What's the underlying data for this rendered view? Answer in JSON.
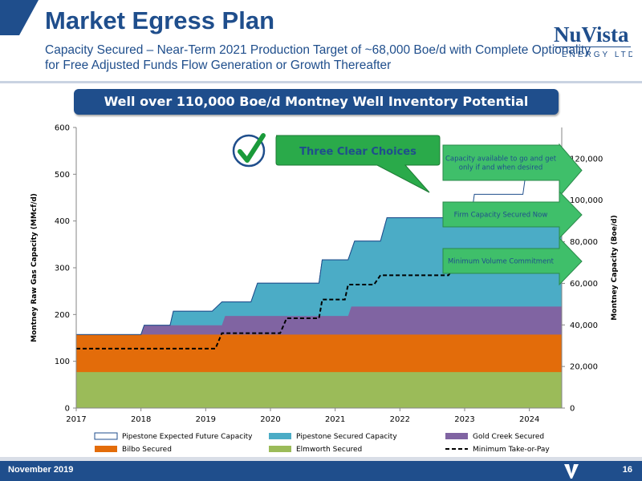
{
  "header": {
    "title": "Market Egress Plan",
    "subtitle": "Capacity Secured – Near-Term 2021 Production Target of ~68,000 Boe/d with Complete Optionality for Free Adjusted Funds Flow Generation or Growth Thereafter"
  },
  "logo": {
    "text": "NuVista",
    "tagline": "ENERGY LTD"
  },
  "banner": {
    "text": "Well over 110,000 Boe/d Montney Well Inventory Potential"
  },
  "footer": {
    "date": "November 2019",
    "page": "16"
  },
  "colors": {
    "brand": "#1f4e8c",
    "elmworth": "#9bbb59",
    "bilbo": "#e36c0a",
    "gold_creek": "#8064a2",
    "pipestone_secured": "#4bacc6",
    "pipestone_future": "#ffffff",
    "callout": "#2aaa4a",
    "arrow": "#3fbf6a"
  },
  "chart_data": {
    "type": "area",
    "title": "",
    "ylabel": "Montney Raw Gas Capacity (MMcf/d)",
    "y2label": "Montney Capacity (Boe/d)",
    "xlim": [
      2017,
      2024.5
    ],
    "ylim": [
      0,
      600
    ],
    "y2lim": [
      0,
      135000
    ],
    "x_ticks": [
      "2017",
      "2018",
      "2019",
      "2020",
      "2021",
      "2022",
      "2023",
      "2024"
    ],
    "y_ticks": [
      "0",
      "100",
      "200",
      "300",
      "400",
      "500",
      "600"
    ],
    "y2_ticks": [
      "0",
      "20,000",
      "40,000",
      "60,000",
      "80,000",
      "100,000",
      "120,000"
    ],
    "grid": false,
    "legend_position": "bottom",
    "series": [
      {
        "name": "Elmworth Secured",
        "style": "area",
        "color": "#9bbb59",
        "points": [
          [
            2017,
            77
          ],
          [
            2024.5,
            77
          ]
        ]
      },
      {
        "name": "Bilbo Secured",
        "style": "area",
        "color": "#e36c0a",
        "points": [
          [
            2017,
            157
          ],
          [
            2024.5,
            157
          ]
        ]
      },
      {
        "name": "Gold Creek Secured",
        "style": "area",
        "color": "#8064a2",
        "points": [
          [
            2017,
            157
          ],
          [
            2018,
            157
          ],
          [
            2018.05,
            177
          ],
          [
            2019.25,
            177
          ],
          [
            2019.3,
            197
          ],
          [
            2021.2,
            197
          ],
          [
            2021.25,
            217
          ],
          [
            2024.5,
            217
          ]
        ]
      },
      {
        "name": "Pipestone Secured Capacity",
        "style": "area",
        "color": "#4bacc6",
        "points": [
          [
            2017,
            157
          ],
          [
            2018,
            157
          ],
          [
            2018.05,
            177
          ],
          [
            2018.45,
            177
          ],
          [
            2018.5,
            207
          ],
          [
            2019.1,
            207
          ],
          [
            2019.25,
            227
          ],
          [
            2019.7,
            227
          ],
          [
            2019.8,
            267
          ],
          [
            2020.75,
            267
          ],
          [
            2020.8,
            317
          ],
          [
            2021.2,
            317
          ],
          [
            2021.3,
            357
          ],
          [
            2021.7,
            357
          ],
          [
            2021.8,
            407
          ],
          [
            2024.5,
            407
          ]
        ]
      },
      {
        "name": "Pipestone Expected Future Capacity",
        "style": "outline",
        "color": "#1f4e8c",
        "points": [
          [
            2017,
            157
          ],
          [
            2018,
            157
          ],
          [
            2018.05,
            177
          ],
          [
            2018.45,
            177
          ],
          [
            2018.5,
            207
          ],
          [
            2019.1,
            207
          ],
          [
            2019.25,
            227
          ],
          [
            2019.7,
            227
          ],
          [
            2019.8,
            267
          ],
          [
            2020.75,
            267
          ],
          [
            2020.8,
            317
          ],
          [
            2021.2,
            317
          ],
          [
            2021.3,
            357
          ],
          [
            2021.7,
            357
          ],
          [
            2021.8,
            407
          ],
          [
            2023.1,
            407
          ],
          [
            2023.15,
            457
          ],
          [
            2023.9,
            457
          ],
          [
            2023.95,
            507
          ],
          [
            2024.5,
            507
          ]
        ]
      },
      {
        "name": "Minimum Take-or-Pay",
        "style": "dashed",
        "color": "#000000",
        "points": [
          [
            2017,
            127
          ],
          [
            2019.15,
            127
          ],
          [
            2019.25,
            160
          ],
          [
            2020.15,
            160
          ],
          [
            2020.25,
            192
          ],
          [
            2020.75,
            192
          ],
          [
            2020.8,
            232
          ],
          [
            2021.15,
            232
          ],
          [
            2021.2,
            264
          ],
          [
            2021.6,
            264
          ],
          [
            2021.7,
            284
          ],
          [
            2022.75,
            284
          ],
          [
            2022.85,
            304
          ],
          [
            2024.5,
            304
          ]
        ]
      }
    ],
    "annotations": {
      "callout": "Three Clear Choices",
      "arrows": [
        "Capacity available to go and get only if and when desired",
        "Firm Capacity Secured Now",
        "Minimum Volume Commitment"
      ]
    }
  }
}
